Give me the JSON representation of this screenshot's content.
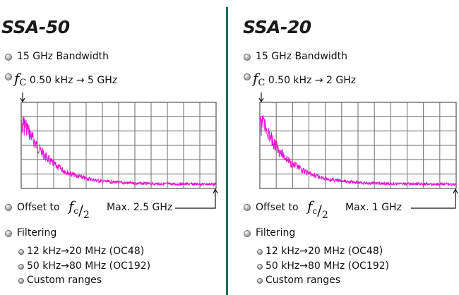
{
  "panels": [
    {
      "model": "SSA-50",
      "bandwidth": "15 GHz Bandwidth",
      "fc_symbol": "f",
      "fc_sub": "C",
      "fc_range": "0.50 kHz → 5 GHz",
      "offset_label": "Offset to",
      "offset_fraction_num": "f",
      "offset_fraction_sub": "c",
      "offset_fraction_den": "2",
      "offset_max": "Max. 2.5 GHz",
      "filtering_label": "Filtering",
      "filters": [
        "12 kHz→20 MHz  (OC48)",
        "50 kHz→80 MHz  (OC192)",
        "Custom ranges"
      ]
    },
    {
      "model": "SSA-20",
      "bandwidth": "15 GHz Bandwidth",
      "fc_symbol": "f",
      "fc_sub": "C",
      "fc_range": "0.50 kHz → 2 GHz",
      "offset_label": "Offset to",
      "offset_fraction_num": "f",
      "offset_fraction_sub": "c",
      "offset_fraction_den": "2",
      "offset_max": "Max. 1 GHz",
      "filtering_label": "Filtering",
      "filters": [
        "12 kHz→20 MHz  (OC48)",
        "50 kHz→80 MHz  (OC192)",
        "Custom ranges"
      ]
    }
  ],
  "colors": {
    "trace": "#e619d4",
    "grid": "#6b6b6b",
    "divider": "#1b6b5f"
  },
  "icons": [
    "bullet-icon",
    "arrow-down-icon",
    "arrow-up-icon"
  ]
}
